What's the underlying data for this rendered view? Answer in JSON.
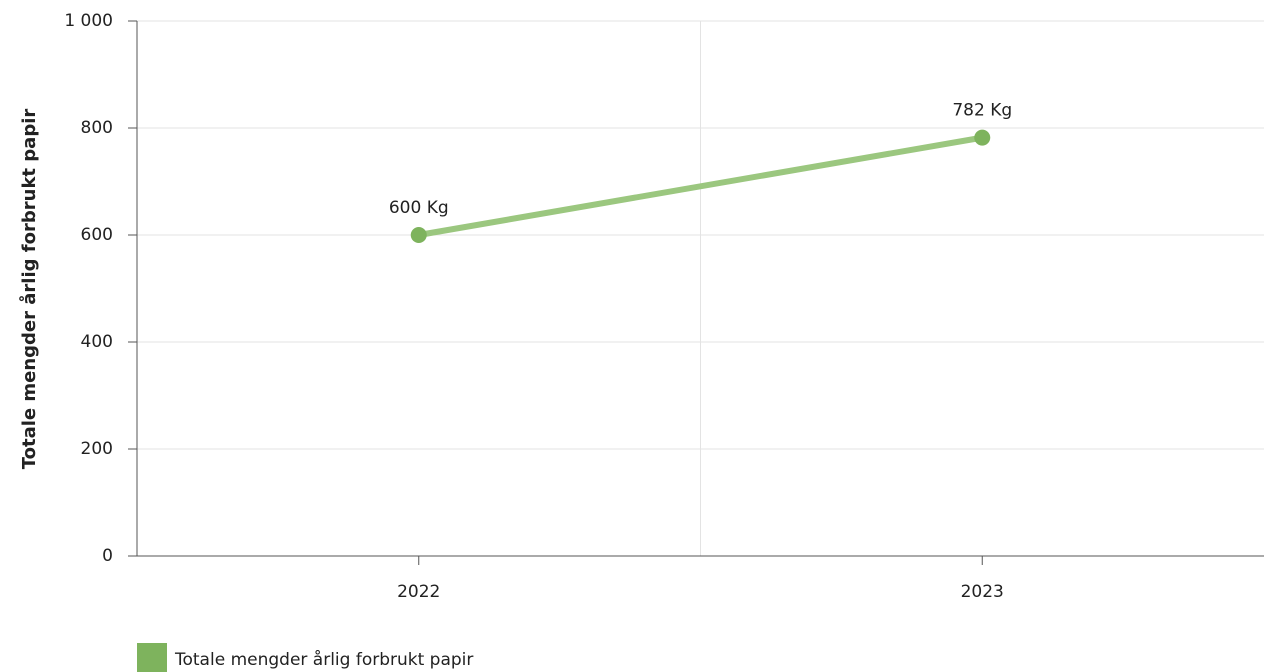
{
  "chart_data": {
    "type": "line",
    "ylabel": "Totale mengder årlig forbrukt papir",
    "categories": [
      "2022",
      "2023"
    ],
    "series": [
      {
        "name": "Totale mengder årlig forbrukt papir",
        "color": "#7eb35d",
        "line_color": "#9bc77f",
        "values": [
          600,
          782
        ],
        "value_labels": [
          "600 Kg",
          "782 Kg"
        ]
      }
    ],
    "ylim": [
      0,
      1000
    ],
    "yticks": [
      0,
      200,
      400,
      600,
      800,
      {
        "value": 1000,
        "label": "1 000"
      }
    ],
    "grid": true,
    "legend": "bottom-left"
  }
}
